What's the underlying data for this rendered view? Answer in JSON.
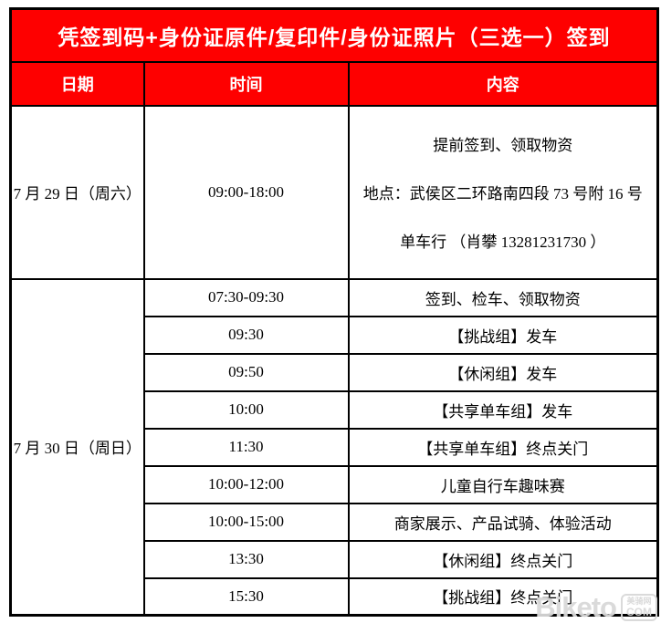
{
  "title": "凭签到码+身份证原件/复印件/身份证照片（三选一）签到",
  "table": {
    "headers": [
      "日期",
      "时间",
      "内容"
    ],
    "day1": {
      "date": "7 月 29 日（周六）",
      "time": "09:00-18:00",
      "content_lines": [
        "提前签到、领取物资",
        "地点：武侯区二环路南四段 73 号附 16 号",
        "单车行  （肖攀 13281231730 ）"
      ]
    },
    "day2": {
      "date": "7 月 30 日（周日）",
      "rows": [
        {
          "time": "07:30-09:30",
          "content": "签到、检车、领取物资"
        },
        {
          "time": "09:30",
          "content": "【挑战组】发车"
        },
        {
          "time": "09:50",
          "content": "【休闲组】发车"
        },
        {
          "time": "10:00",
          "content": "【共享单车组】发车"
        },
        {
          "time": "11:30",
          "content": "【共享单车组】终点关门"
        },
        {
          "time": "10:00-12:00",
          "content": "儿童自行车趣味赛"
        },
        {
          "time": "10:00-15:00",
          "content": "商家展示、产品试骑、体验活动"
        },
        {
          "time": "13:30",
          "content": "【休闲组】终点关门"
        },
        {
          "time": "15:30",
          "content": "【挑战组】终点关门"
        }
      ]
    }
  },
  "watermark": {
    "brand": "Biketo",
    "badge_top": "美骑网",
    "badge_bottom": "COM"
  },
  "colors": {
    "band_red": "#fe0000",
    "band_text": "#ffffff",
    "border": "#000000",
    "body_text": "#000000",
    "watermark_gray": "#d9d9d9"
  }
}
